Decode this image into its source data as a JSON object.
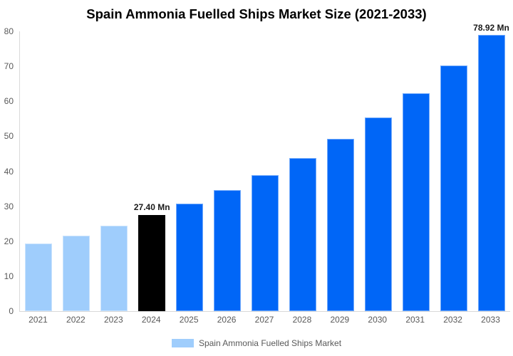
{
  "chart_data": {
    "type": "bar",
    "title": "Spain Ammonia Fuelled Ships Market Size (2021-2033)",
    "xlabel": "",
    "ylabel": "",
    "ylim": [
      0,
      80
    ],
    "yticks": [
      0,
      10,
      20,
      30,
      40,
      50,
      60,
      70,
      80
    ],
    "grid": false,
    "legend_position": "bottom",
    "categories": [
      "2021",
      "2022",
      "2023",
      "2024",
      "2025",
      "2026",
      "2027",
      "2028",
      "2029",
      "2030",
      "2031",
      "2032",
      "2033"
    ],
    "series": [
      {
        "name": "Spain Ammonia Fuelled Ships Market",
        "values": [
          19.26,
          21.66,
          24.36,
          27.4,
          30.82,
          34.66,
          38.98,
          43.84,
          49.31,
          55.46,
          62.37,
          70.15,
          78.92
        ]
      }
    ],
    "annotations": [
      {
        "category": "2024",
        "text": "27.40 Mn"
      },
      {
        "category": "2033",
        "text": "78.92 Mn"
      }
    ],
    "colors": {
      "historical": "#9fcdfc",
      "base_year": "#000000",
      "forecast": "#0066f7",
      "axis_line": "#d9d9d9",
      "tick_text": "#595959"
    },
    "bars": [
      {
        "year": "2021",
        "value": 19.26,
        "color": "#9fcdfc",
        "label": null
      },
      {
        "year": "2022",
        "value": 21.66,
        "color": "#9fcdfc",
        "label": null
      },
      {
        "year": "2023",
        "value": 24.36,
        "color": "#9fcdfc",
        "label": null
      },
      {
        "year": "2024",
        "value": 27.4,
        "color": "#000000",
        "label": "27.40 Mn"
      },
      {
        "year": "2025",
        "value": 30.82,
        "color": "#0066f7",
        "label": null
      },
      {
        "year": "2026",
        "value": 34.66,
        "color": "#0066f7",
        "label": null
      },
      {
        "year": "2027",
        "value": 38.98,
        "color": "#0066f7",
        "label": null
      },
      {
        "year": "2028",
        "value": 43.84,
        "color": "#0066f7",
        "label": null
      },
      {
        "year": "2029",
        "value": 49.31,
        "color": "#0066f7",
        "label": null
      },
      {
        "year": "2030",
        "value": 55.46,
        "color": "#0066f7",
        "label": null
      },
      {
        "year": "2031",
        "value": 62.37,
        "color": "#0066f7",
        "label": null
      },
      {
        "year": "2032",
        "value": 70.15,
        "color": "#0066f7",
        "label": null
      },
      {
        "year": "2033",
        "value": 78.92,
        "color": "#0066f7",
        "label": "78.92 Mn"
      }
    ],
    "legend": [
      {
        "label": "Spain Ammonia Fuelled Ships Market",
        "color": "#9fcdfc"
      }
    ]
  }
}
